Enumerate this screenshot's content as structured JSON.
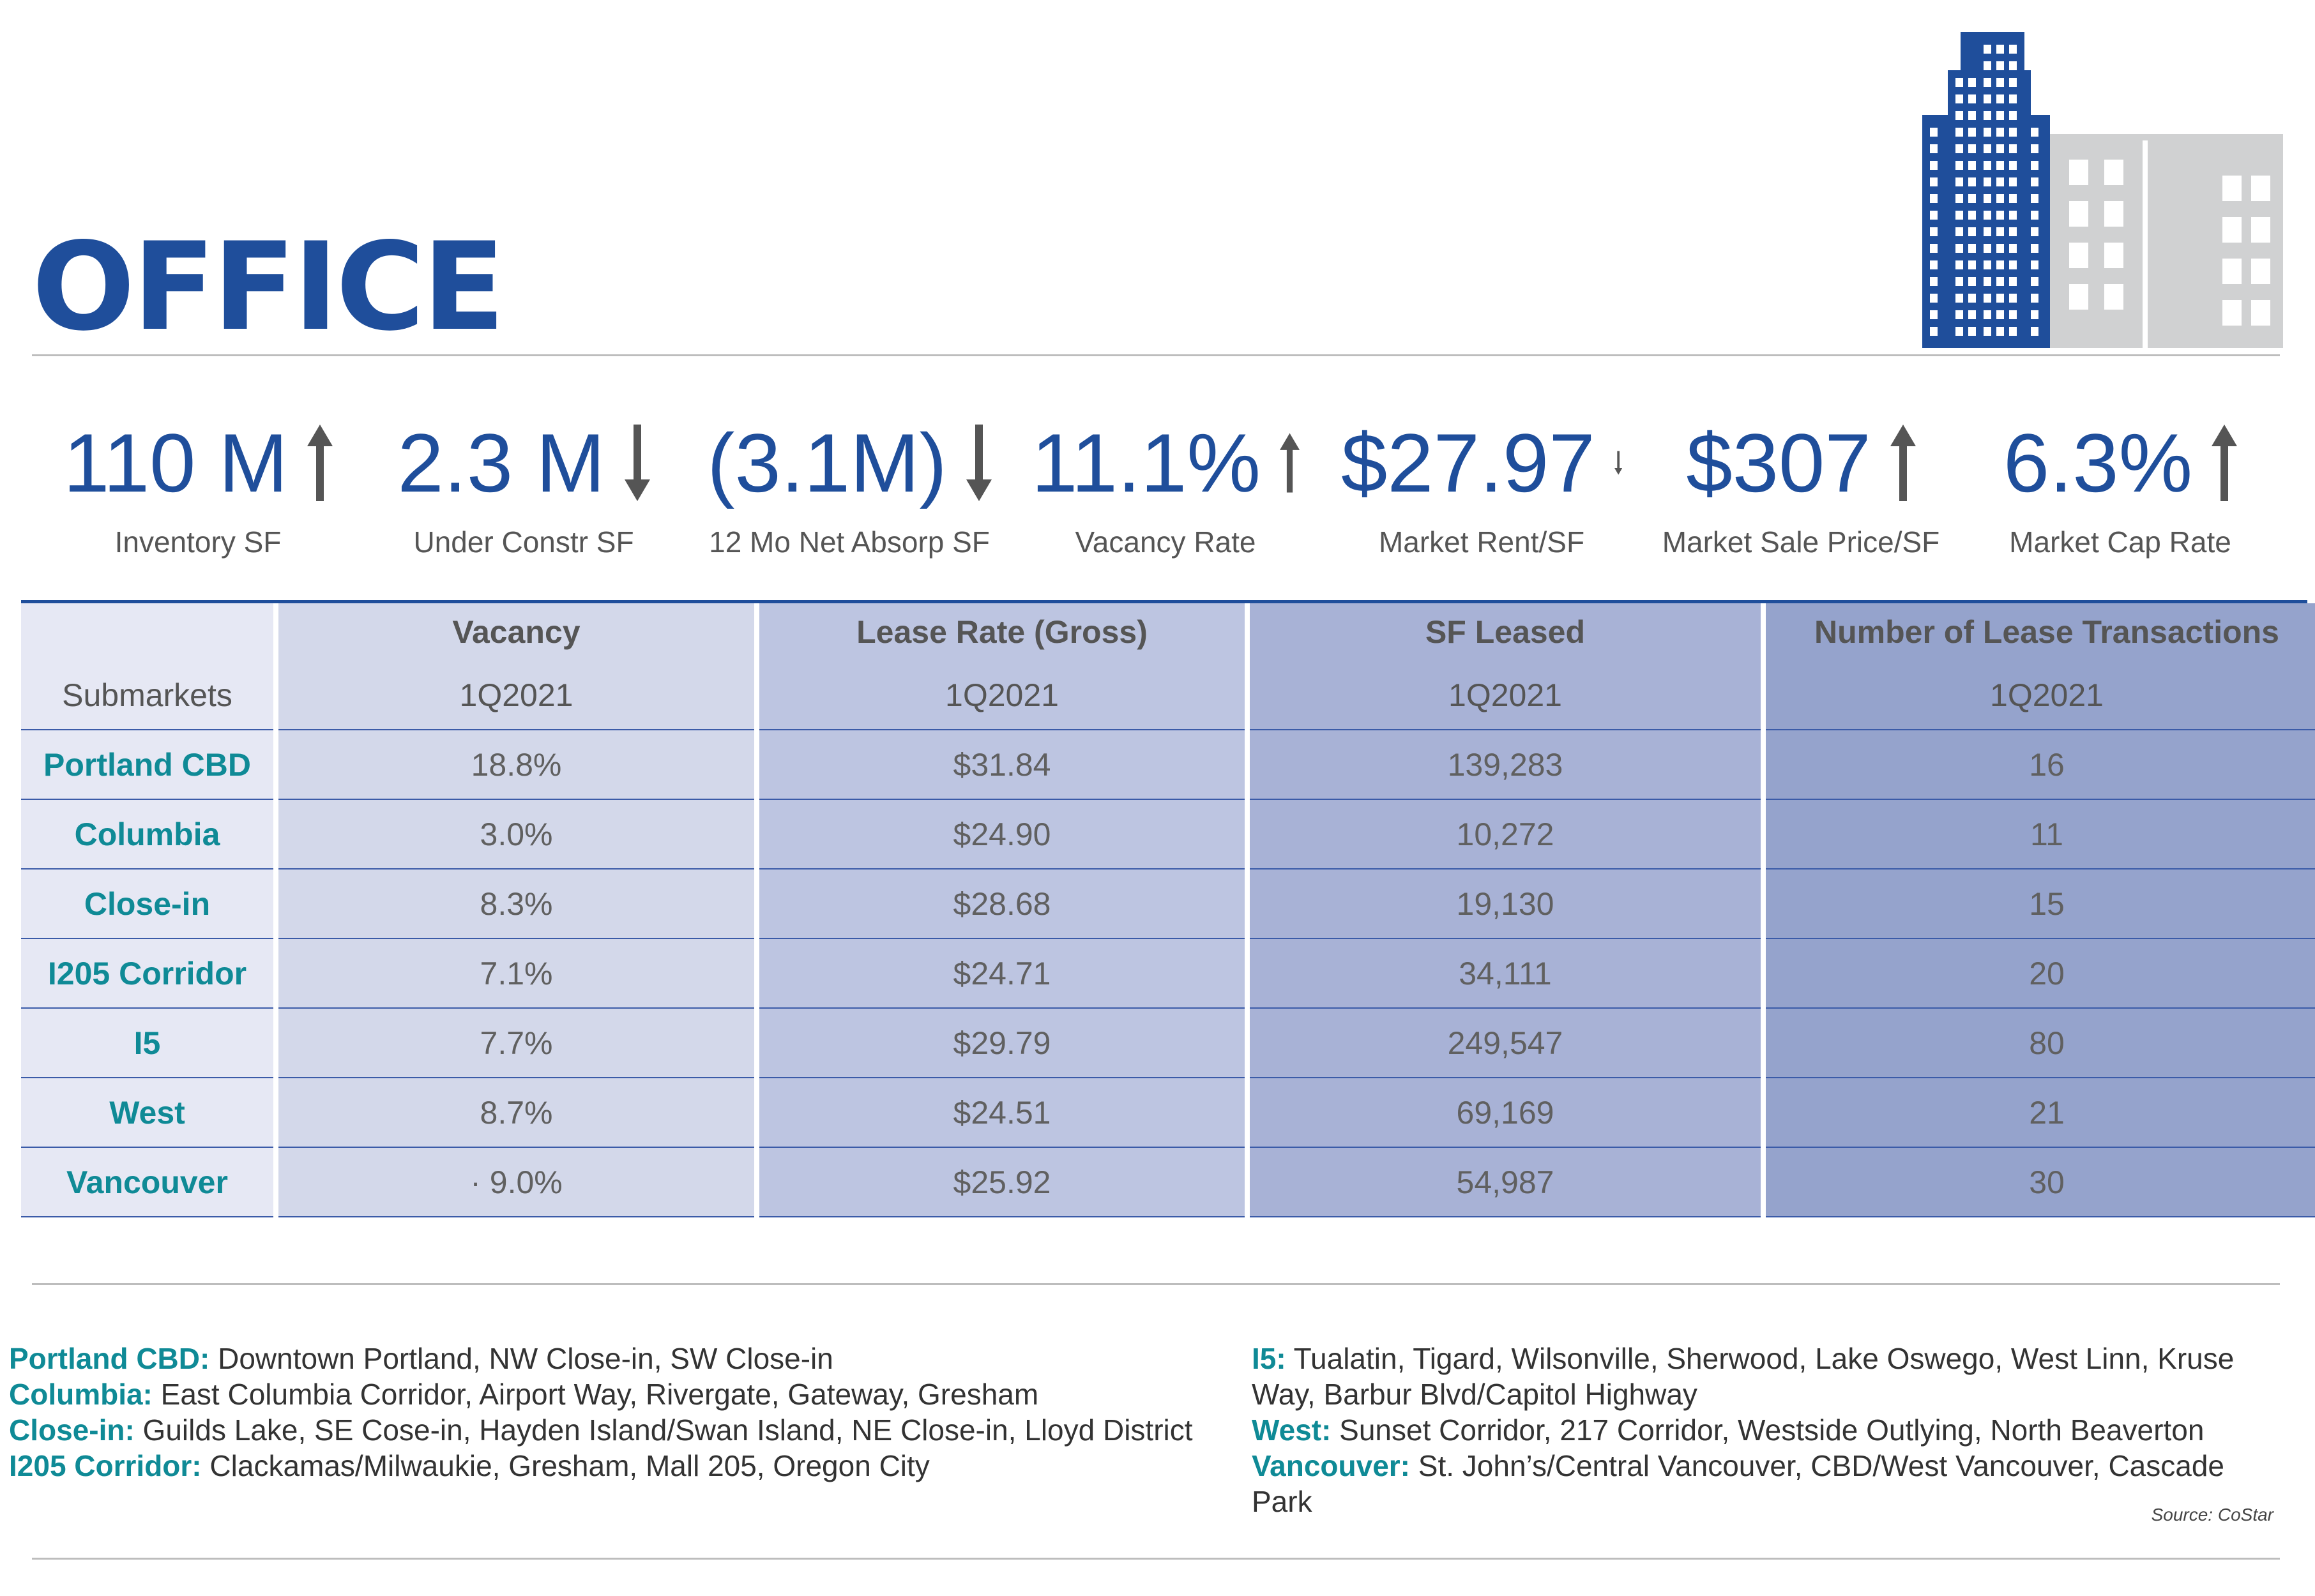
{
  "title": "OFFICE",
  "colors": {
    "primary": "#1f4e9b",
    "teal": "#0f8a96",
    "gray_building": "#d0d1d2"
  },
  "stats": [
    {
      "value": "110 M",
      "label": "Inventory SF",
      "arrow": "up-arrow-icon"
    },
    {
      "value": "2.3 M",
      "label": "Under Constr SF",
      "arrow": "down-arrow-icon"
    },
    {
      "value": "(3.1M)",
      "label": "12 Mo Net Absorp SF",
      "arrow": "down-arrow-icon"
    },
    {
      "value": "11.1%",
      "label": "Vacancy Rate",
      "arrow": "up-arrow-icon"
    },
    {
      "value": "$27.97",
      "label": "Market Rent/SF",
      "arrow": "down-arrow-icon"
    },
    {
      "value": "$307",
      "label": "Market Sale Price/SF",
      "arrow": "up-arrow-icon"
    },
    {
      "value": "6.3%",
      "label": "Market Cap Rate",
      "arrow": "up-arrow-icon"
    }
  ],
  "table": {
    "headers": [
      "",
      "Vacancy",
      "Lease Rate (Gross)",
      "SF Leased",
      "Number of Lease Transactions"
    ],
    "subheaders": [
      "Submarkets",
      "1Q2021",
      "1Q2021",
      "1Q2021",
      "1Q2021"
    ],
    "rows": [
      {
        "name": "Portland CBD",
        "vacancy": "18.8%",
        "lease_rate": "$31.84",
        "sf_leased": "139,283",
        "transactions": "16"
      },
      {
        "name": "Columbia",
        "vacancy": "3.0%",
        "lease_rate": "$24.90",
        "sf_leased": "10,272",
        "transactions": "11"
      },
      {
        "name": "Close-in",
        "vacancy": "8.3%",
        "lease_rate": "$28.68",
        "sf_leased": "19,130",
        "transactions": "15"
      },
      {
        "name": "I205 Corridor",
        "vacancy": "7.1%",
        "lease_rate": "$24.71",
        "sf_leased": "34,111",
        "transactions": "20"
      },
      {
        "name": "I5",
        "vacancy": "7.7%",
        "lease_rate": "$29.79",
        "sf_leased": "249,547",
        "transactions": "80"
      },
      {
        "name": "West",
        "vacancy": "8.7%",
        "lease_rate": "$24.51",
        "sf_leased": "69,169",
        "transactions": "21"
      },
      {
        "name": "Vancouver",
        "vacancy": "· 9.0%",
        "lease_rate": "$25.92",
        "sf_leased": "54,987",
        "transactions": "30"
      }
    ]
  },
  "notes_left": [
    {
      "term": "Portland CBD:",
      "text": " Downtown Portland, NW Close-in, SW Close-in"
    },
    {
      "term": "Columbia:",
      "text": " East Columbia Corridor, Airport Way, Rivergate, Gateway, Gresham"
    },
    {
      "term": "Close-in:",
      "text": " Guilds Lake, SE Cose-in, Hayden Island/Swan Island, NE Close-in, Lloyd District"
    },
    {
      "term": "I205 Corridor:",
      "text": " Clackamas/Milwaukie, Gresham, Mall 205, Oregon City"
    }
  ],
  "notes_right": [
    {
      "term": "I5:",
      "text": " Tualatin, Tigard, Wilsonville, Sherwood, Lake Oswego, West Linn, Kruse",
      "cont": "Way, Barbur Blvd/Capitol Highway"
    },
    {
      "term": "West:",
      "text": " Sunset Corridor, 217 Corridor, Westside Outlying, North Beaverton",
      "cont": ""
    },
    {
      "term": "Vancouver:",
      "text": " St. John’s/Central Vancouver, CBD/West Vancouver, Cascade",
      "cont": "Park"
    }
  ],
  "source": "Source: CoStar"
}
